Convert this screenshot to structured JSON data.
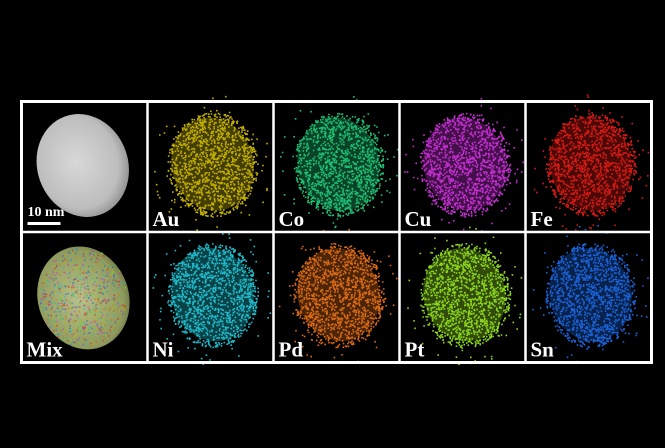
{
  "scale_bar": "10 nm",
  "panels": [
    {},
    {
      "label": "Au",
      "color": "#c2b000"
    },
    {
      "label": "Co",
      "color": "#1fbf72"
    },
    {
      "label": "Cu",
      "color": "#c22fd0"
    },
    {
      "label": "Fe",
      "color": "#d41a14"
    },
    {
      "label": "Mix"
    },
    {
      "label": "Ni",
      "color": "#1fbccc"
    },
    {
      "label": "Pd",
      "color": "#d96a16"
    },
    {
      "label": "Pt",
      "color": "#8cd61e"
    },
    {
      "label": "Sn",
      "color": "#1a62d6"
    }
  ]
}
